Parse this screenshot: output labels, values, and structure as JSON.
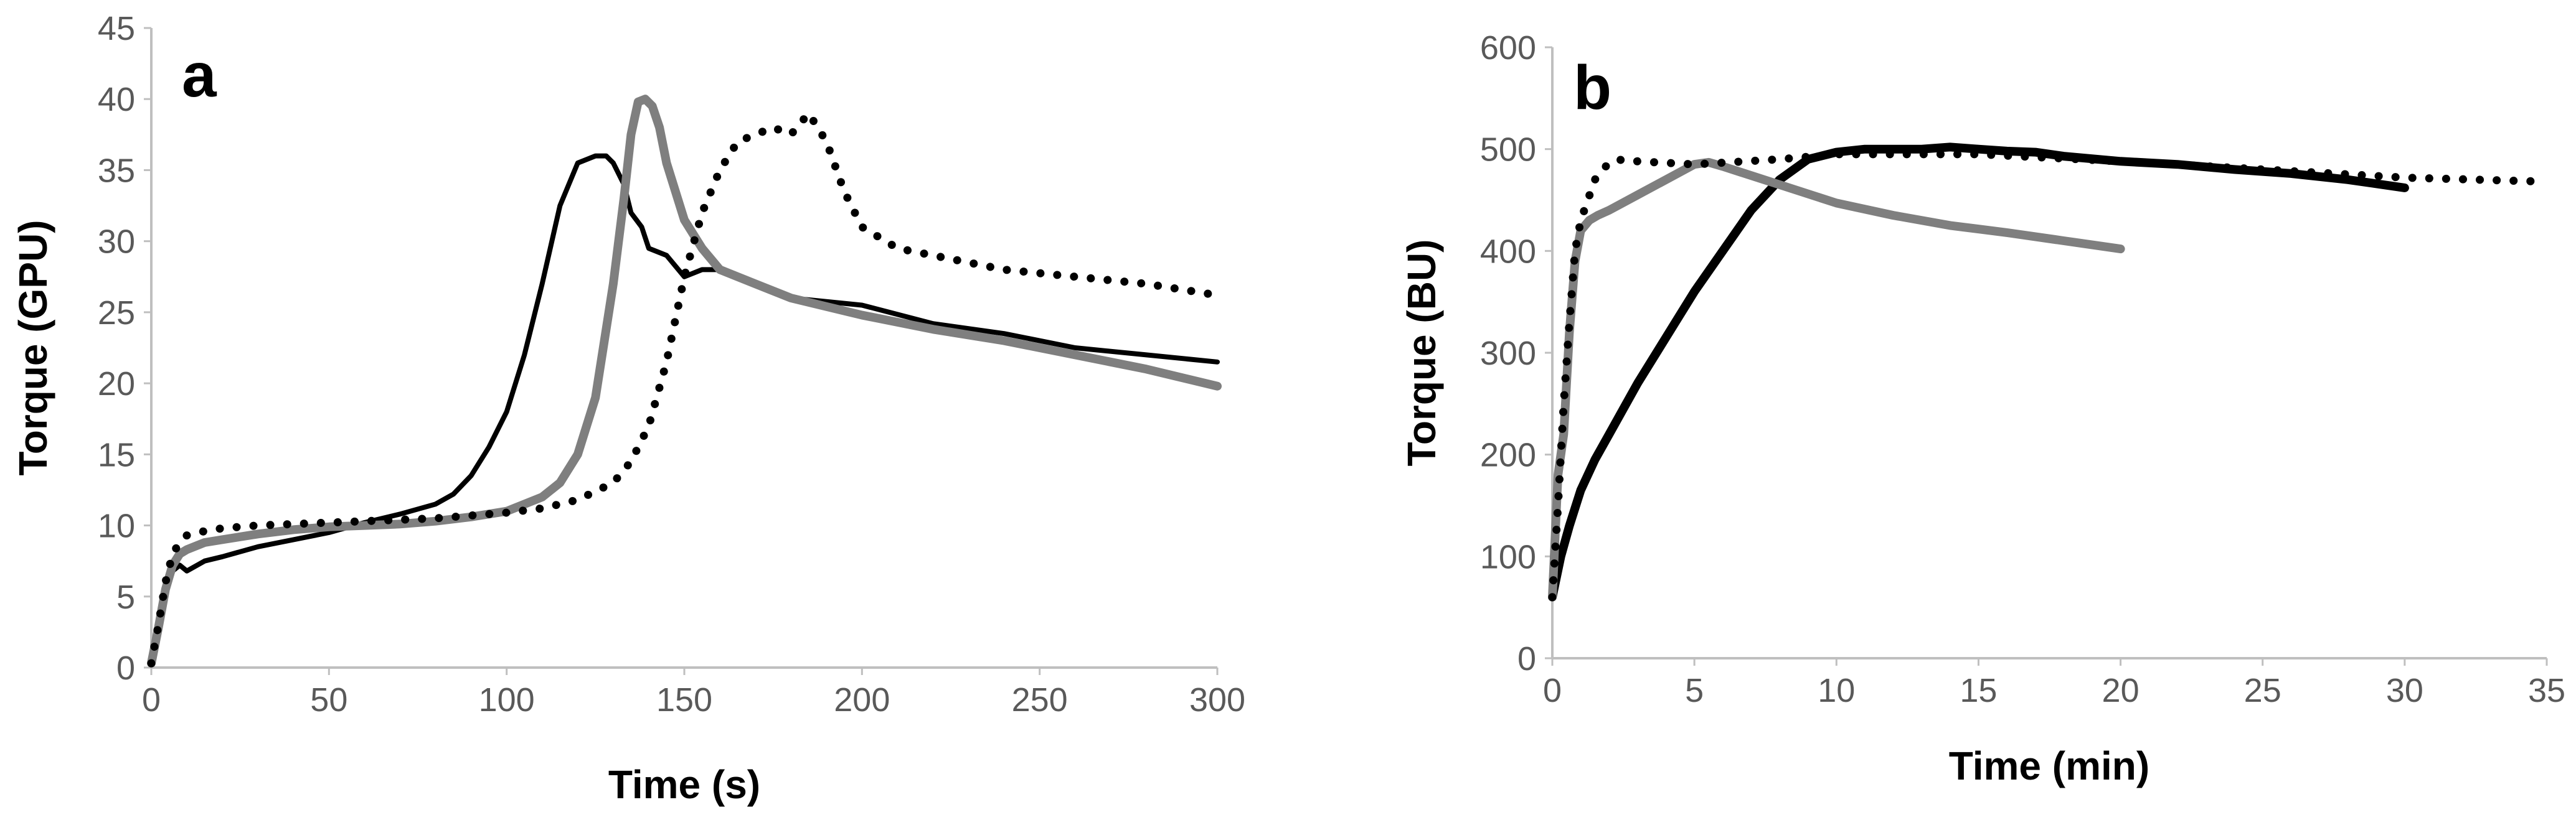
{
  "chart_data": [
    {
      "type": "line",
      "panel_label": "a",
      "xlabel": "Time (s)",
      "ylabel": "Torque (GPU)",
      "xlim": [
        0,
        300
      ],
      "ylim": [
        0,
        45
      ],
      "xticks": [
        0,
        50,
        100,
        150,
        200,
        250,
        300
      ],
      "yticks": [
        0,
        5,
        10,
        15,
        20,
        25,
        30,
        35,
        40,
        45
      ],
      "grid": false,
      "series": [
        {
          "name": "black solid",
          "color": "#000000",
          "style": "solid",
          "x": [
            0,
            2,
            4,
            6,
            8,
            10,
            15,
            20,
            30,
            40,
            50,
            60,
            70,
            80,
            85,
            90,
            95,
            100,
            105,
            110,
            115,
            120,
            125,
            128,
            130,
            133,
            135,
            138,
            140,
            145,
            150,
            155,
            160,
            170,
            180,
            200,
            220,
            240,
            260,
            280,
            300
          ],
          "y": [
            0.3,
            2.5,
            5.2,
            6.8,
            7.2,
            6.8,
            7.5,
            7.8,
            8.5,
            9.0,
            9.5,
            10.2,
            10.8,
            11.5,
            12.2,
            13.5,
            15.5,
            18.0,
            22.0,
            27.0,
            32.5,
            35.5,
            36.0,
            36.0,
            35.5,
            34.0,
            32.0,
            31.0,
            29.5,
            29.0,
            27.5,
            28.0,
            28.0,
            27.0,
            26.0,
            25.5,
            24.2,
            23.5,
            22.5,
            22.0,
            21.5
          ]
        },
        {
          "name": "gray thick",
          "color": "#7f7f7f",
          "style": "solid",
          "x": [
            0,
            2,
            4,
            6,
            8,
            10,
            15,
            20,
            30,
            40,
            50,
            60,
            70,
            80,
            90,
            100,
            110,
            115,
            120,
            125,
            130,
            133,
            135,
            137,
            139,
            141,
            143,
            145,
            150,
            155,
            160,
            170,
            180,
            200,
            220,
            240,
            260,
            280,
            300
          ],
          "y": [
            0.3,
            2.8,
            5.5,
            7.2,
            8.0,
            8.3,
            8.8,
            9.0,
            9.4,
            9.7,
            9.9,
            10.0,
            10.1,
            10.3,
            10.6,
            11.0,
            12.0,
            13.0,
            15.0,
            19.0,
            27.0,
            33.0,
            37.5,
            39.8,
            40.0,
            39.5,
            38.0,
            35.5,
            31.5,
            29.5,
            28.0,
            27.0,
            26.0,
            24.8,
            23.8,
            23.0,
            22.0,
            21.0,
            19.8
          ]
        },
        {
          "name": "black dotted",
          "color": "#000000",
          "style": "dotted",
          "x": [
            0,
            2,
            4,
            6,
            8,
            10,
            15,
            20,
            30,
            40,
            50,
            60,
            70,
            80,
            90,
            100,
            110,
            120,
            130,
            135,
            140,
            145,
            150,
            155,
            160,
            165,
            170,
            175,
            180,
            185,
            190,
            195,
            200,
            210,
            220,
            240,
            260,
            280,
            300
          ],
          "y": [
            0.3,
            3.0,
            6.0,
            8.0,
            8.8,
            9.3,
            9.6,
            9.8,
            10.0,
            10.1,
            10.2,
            10.3,
            10.4,
            10.5,
            10.7,
            10.9,
            11.2,
            11.8,
            13.0,
            14.5,
            17.0,
            21.5,
            27.5,
            32.0,
            35.0,
            37.0,
            37.5,
            38.0,
            37.5,
            39.0,
            37.0,
            33.5,
            31.0,
            29.5,
            29.0,
            28.0,
            27.5,
            27.0,
            26.2
          ]
        }
      ]
    },
    {
      "type": "line",
      "panel_label": "b",
      "xlabel": "Time (min)",
      "ylabel": "Torque (BU)",
      "xlim": [
        0,
        35
      ],
      "ylim": [
        0,
        600
      ],
      "xticks": [
        0,
        5,
        10,
        15,
        20,
        25,
        30,
        35
      ],
      "yticks": [
        0,
        100,
        200,
        300,
        400,
        500,
        600
      ],
      "grid": false,
      "series": [
        {
          "name": "black thick",
          "color": "#000000",
          "style": "solid",
          "x": [
            0,
            0.3,
            0.6,
            1,
            1.5,
            2,
            3,
            4,
            5,
            6,
            7,
            8,
            9,
            10,
            11,
            12,
            13,
            14,
            15,
            16,
            17,
            18,
            20,
            22,
            24,
            26,
            28,
            30
          ],
          "y": [
            60,
            100,
            130,
            165,
            195,
            220,
            270,
            315,
            360,
            400,
            440,
            470,
            490,
            497,
            500,
            500,
            500,
            502,
            500,
            498,
            497,
            493,
            488,
            485,
            480,
            476,
            470,
            462
          ]
        },
        {
          "name": "gray thick",
          "color": "#7f7f7f",
          "style": "solid",
          "x": [
            0,
            0.2,
            0.4,
            0.6,
            0.8,
            1,
            1.3,
            1.6,
            2,
            3,
            4,
            5,
            5.5,
            6,
            8,
            10,
            12,
            14,
            16,
            18,
            20
          ],
          "y": [
            60,
            180,
            220,
            320,
            390,
            420,
            430,
            435,
            440,
            455,
            470,
            485,
            487,
            483,
            465,
            447,
            435,
            425,
            418,
            410,
            402
          ]
        },
        {
          "name": "black dotted",
          "color": "#000000",
          "style": "dotted",
          "x": [
            0,
            0.2,
            0.4,
            0.6,
            0.8,
            1,
            1.5,
            2,
            2.5,
            3,
            5,
            8,
            10,
            15,
            20,
            25,
            30,
            35
          ],
          "y": [
            60,
            150,
            250,
            330,
            400,
            430,
            470,
            487,
            490,
            488,
            485,
            490,
            495,
            495,
            488,
            480,
            472,
            468
          ]
        }
      ]
    }
  ]
}
